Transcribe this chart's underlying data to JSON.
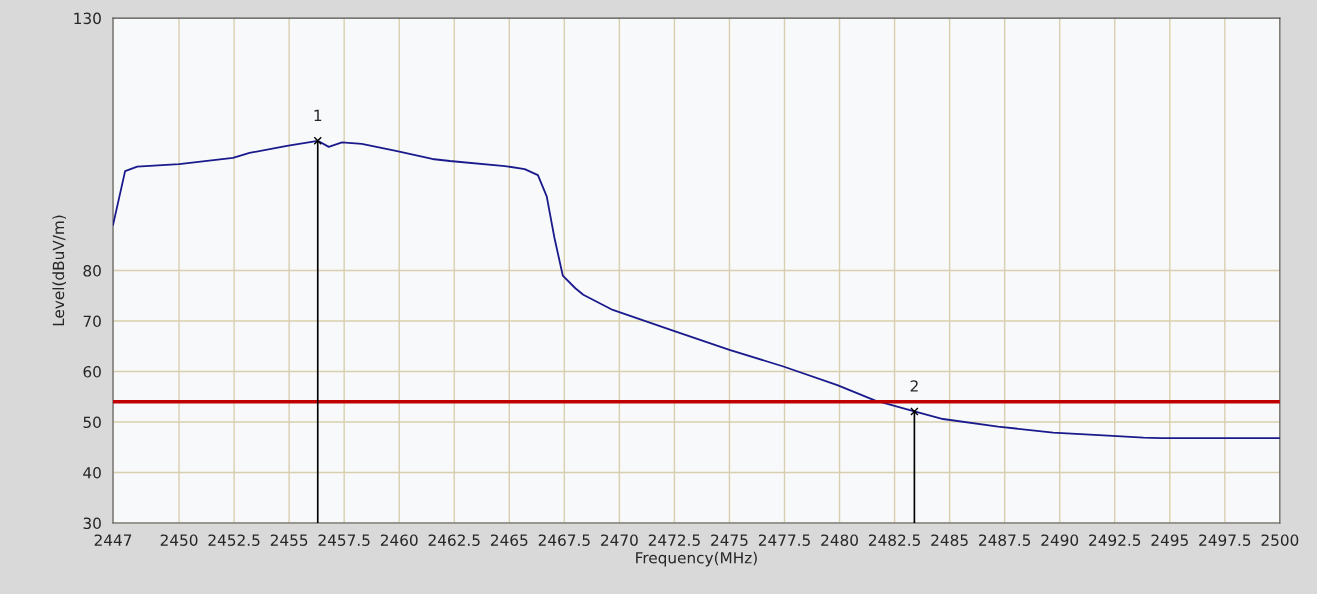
{
  "chart_data": {
    "type": "line",
    "xlabel": "Frequency(MHz)",
    "ylabel": "Level(dBuV/m)",
    "xlim": [
      2447,
      2500
    ],
    "ylim": [
      30,
      130
    ],
    "xticks": [
      2447,
      2450,
      2452.5,
      2455,
      2457.5,
      2460,
      2462.5,
      2465,
      2467.5,
      2470,
      2472.5,
      2475,
      2477.5,
      2480,
      2482.5,
      2485,
      2487.5,
      2490,
      2492.5,
      2495,
      2497.5,
      2500
    ],
    "yticks": [
      30,
      40,
      50,
      60,
      70,
      80,
      130
    ],
    "grid": true,
    "marker": "none",
    "line_style": "solid",
    "series": [
      {
        "color": "#1a1a8c",
        "x": [
          2447,
          2447.55,
          2448.1,
          2450,
          2452.45,
          2453.2,
          2454.9,
          2456.3,
          2456.8,
          2457.4,
          2458.3,
          2459.85,
          2461.5,
          2462.3,
          2464.8,
          2465.7,
          2466.3,
          2466.7,
          2467.05,
          2467.43,
          2468.0,
          2468.36,
          2469.7,
          2472.5,
          2475,
          2477.45,
          2479.9,
          2481.6,
          2483.4,
          2484.7,
          2487.2,
          2489.7,
          2492.2,
          2493.8,
          2494.6,
          2500
        ],
        "values": [
          89.0,
          99.7,
          100.6,
          101.1,
          102.3,
          103.3,
          104.7,
          105.7,
          104.5,
          105.4,
          105.1,
          103.7,
          102.1,
          101.7,
          100.7,
          100.1,
          98.9,
          94.7,
          86.5,
          79.0,
          76.5,
          75.2,
          72.2,
          68.0,
          64.3,
          61.0,
          57.3,
          54.3,
          52.1,
          50.6,
          49.1,
          47.9,
          47.3,
          46.9,
          46.8,
          46.8
        ]
      }
    ],
    "ref_lines": [
      {
        "axis": "y",
        "value": 54,
        "color": "#c00000"
      }
    ],
    "annotations": [
      {
        "text": "1",
        "x": 2456.3,
        "y": 105.7
      },
      {
        "text": "2",
        "x": 2483.4,
        "y": 52.1
      }
    ]
  }
}
